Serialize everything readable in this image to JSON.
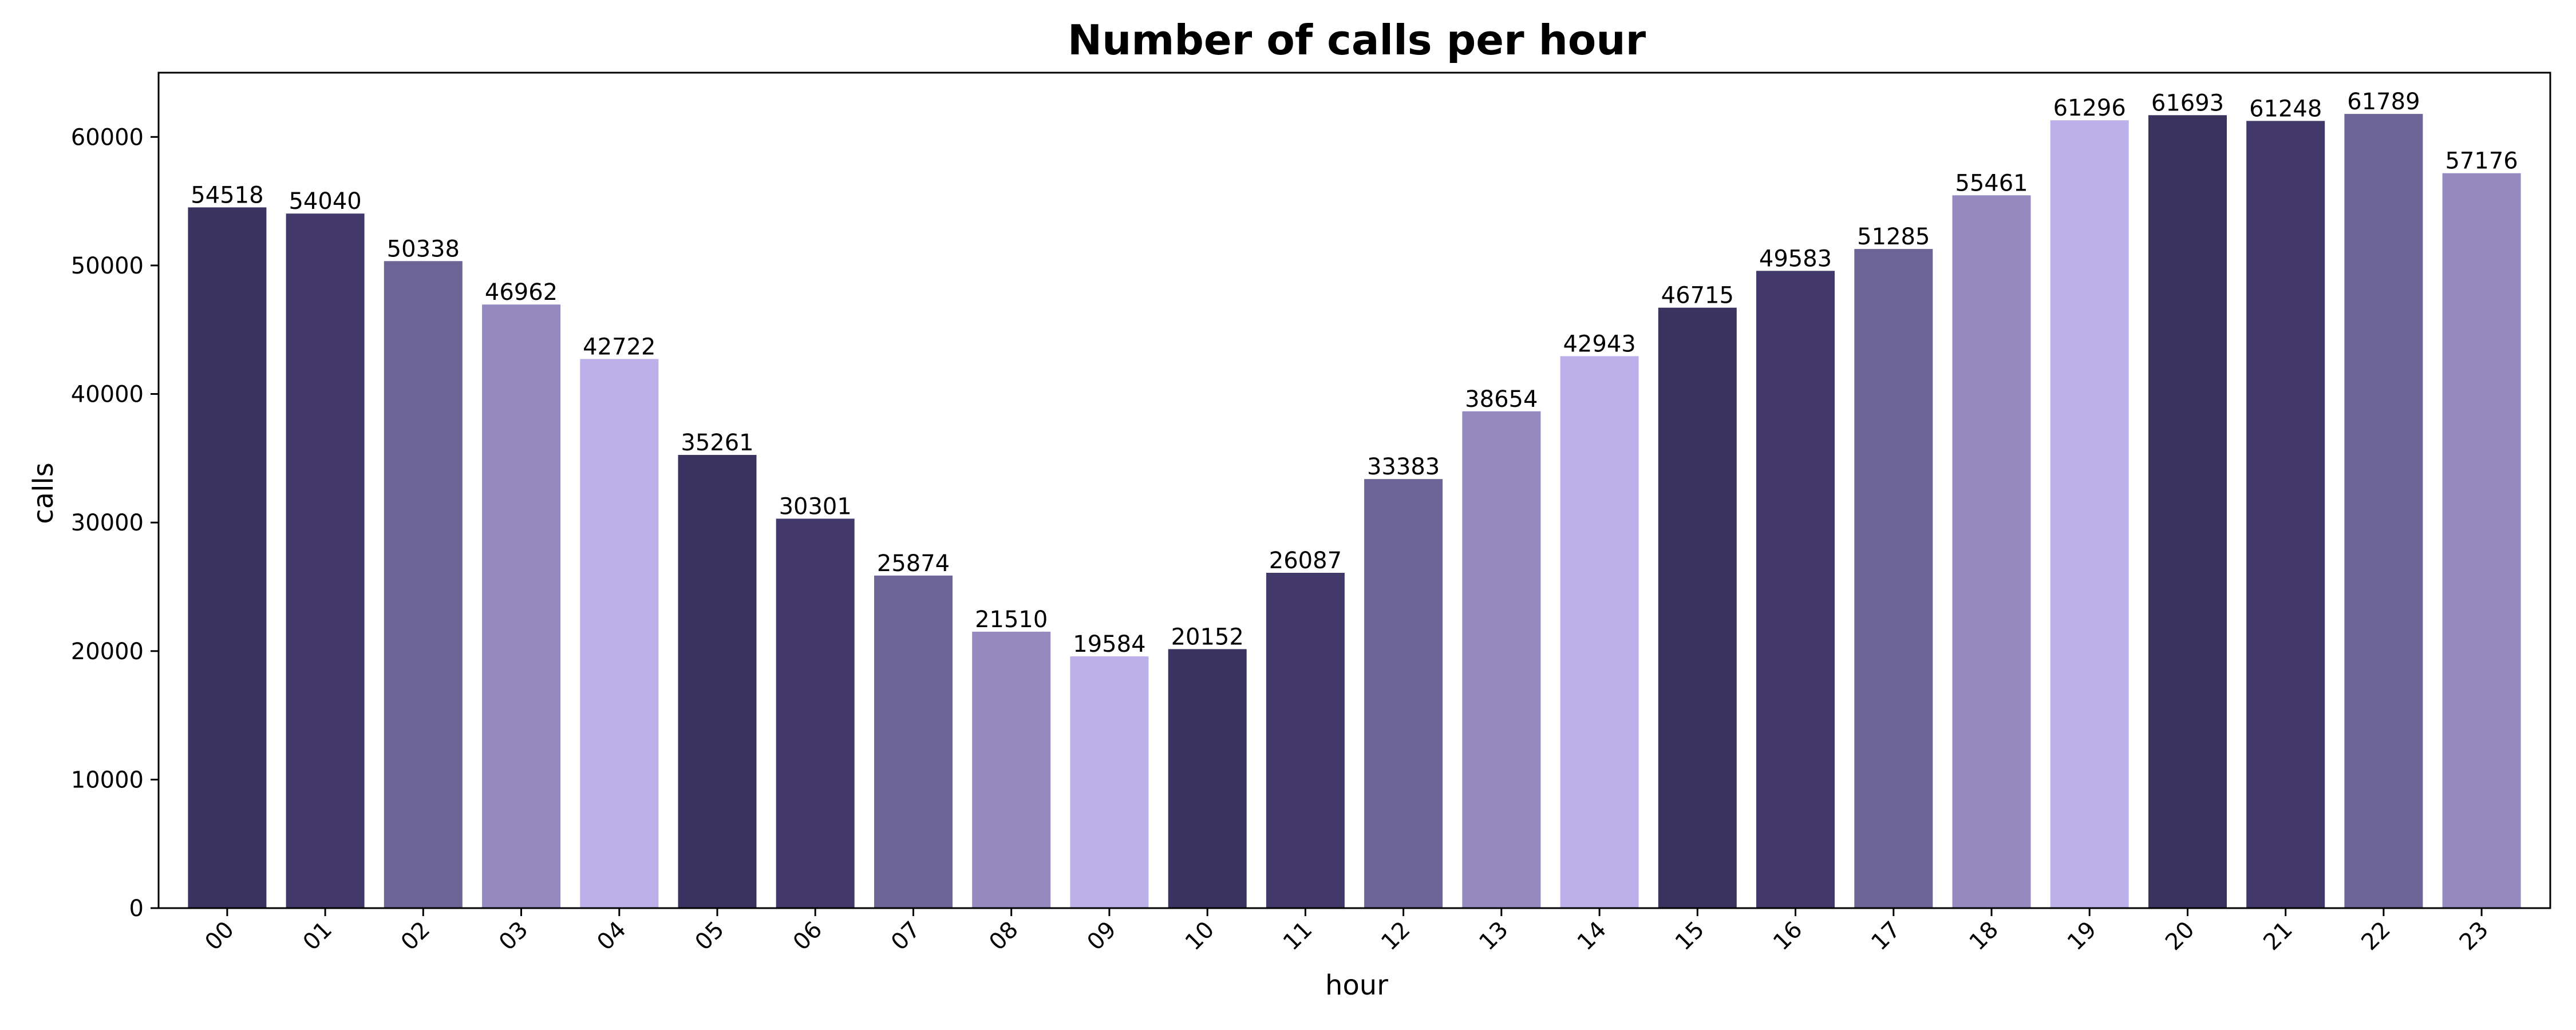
{
  "chart_data": {
    "type": "bar",
    "title": "Number of calls per hour",
    "xlabel": "hour",
    "ylabel": "calls",
    "ylim": [
      0,
      65000
    ],
    "yticks": [
      0,
      10000,
      20000,
      30000,
      40000,
      50000,
      60000
    ],
    "grid": false,
    "categories": [
      "00",
      "01",
      "02",
      "03",
      "04",
      "05",
      "06",
      "07",
      "08",
      "09",
      "10",
      "11",
      "12",
      "13",
      "14",
      "15",
      "16",
      "17",
      "18",
      "19",
      "20",
      "21",
      "22",
      "23"
    ],
    "values": [
      54518,
      54040,
      50338,
      46962,
      42722,
      35261,
      30301,
      25874,
      21510,
      19584,
      20152,
      26087,
      33383,
      38654,
      42943,
      46715,
      49583,
      51285,
      55461,
      61296,
      61693,
      61248,
      61789,
      57176
    ],
    "data_labels": [
      "54518",
      "54040",
      "50338",
      "46962",
      "42722",
      "35261",
      "30301",
      "25874",
      "21510",
      "19584",
      "20152",
      "26087",
      "33383",
      "38654",
      "42943",
      "46715",
      "49583",
      "51285",
      "55461",
      "61296",
      "61693",
      "61248",
      "61789",
      "57176"
    ],
    "palette": [
      "#3a3360",
      "#423869",
      "#6c6496",
      "#9589c0",
      "#bcafea"
    ]
  }
}
